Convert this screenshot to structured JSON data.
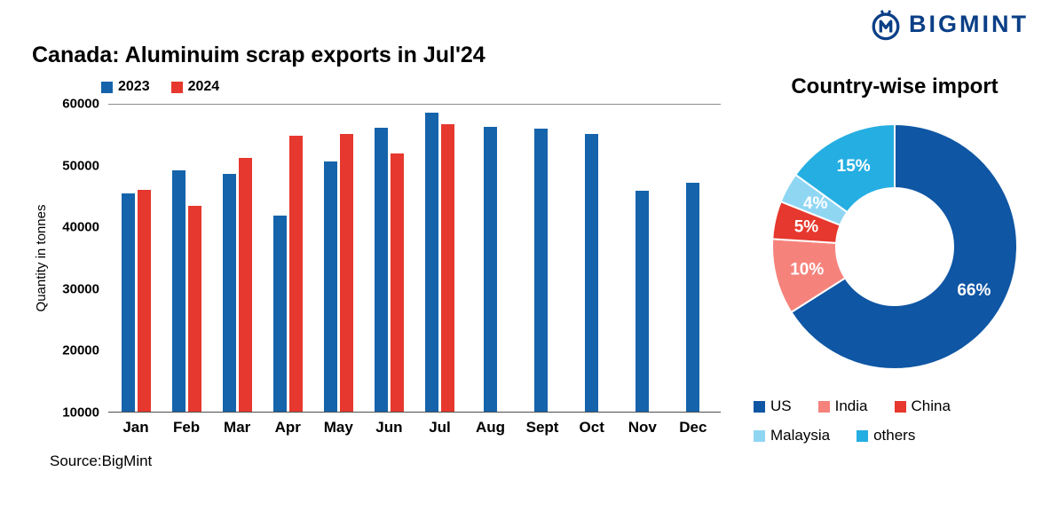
{
  "logo": {
    "text": "BIGMINT",
    "color": "#0a3f86"
  },
  "bar_chart": {
    "title": "Canada: Aluminuim scrap exports in Jul'24",
    "ylabel": "Quantity in tonnes",
    "source": "Source:BigMint"
  },
  "donut_chart": {
    "title": "Country-wise import"
  },
  "chart_data": [
    {
      "type": "bar",
      "title": "Canada: Aluminuim scrap exports in Jul'24",
      "xlabel": "",
      "ylabel": "Quantity in tonnes",
      "ylim": [
        10000,
        60000
      ],
      "yticks": [
        10000,
        20000,
        30000,
        40000,
        50000,
        60000
      ],
      "categories": [
        "Jan",
        "Feb",
        "Mar",
        "Apr",
        "May",
        "Jun",
        "Jul",
        "Aug",
        "Sept",
        "Oct",
        "Nov",
        "Dec"
      ],
      "series": [
        {
          "name": "2023",
          "color": "#1563ab",
          "values": [
            45500,
            49300,
            48800,
            42000,
            50700,
            56200,
            58700,
            56400,
            56100,
            55200,
            46000,
            47300
          ]
        },
        {
          "name": "2024",
          "color": "#e6382e",
          "values": [
            46200,
            43500,
            51400,
            54900,
            55300,
            52100,
            56800,
            null,
            null,
            null,
            null,
            null
          ]
        }
      ],
      "grid": false,
      "legend_position": "top-left",
      "source": "Source:BigMint"
    },
    {
      "type": "pie",
      "donut": true,
      "title": "Country-wise import",
      "labels": [
        "US",
        "India",
        "China",
        "Malaysia",
        "others"
      ],
      "values": [
        66,
        10,
        5,
        4,
        15
      ],
      "value_labels": [
        "66%",
        "10%",
        "5%",
        "4%",
        "15%"
      ],
      "colors": [
        "#0f56a4",
        "#f5837c",
        "#e6382e",
        "#8fd6f3",
        "#25aee2"
      ],
      "legend_position": "bottom"
    }
  ]
}
